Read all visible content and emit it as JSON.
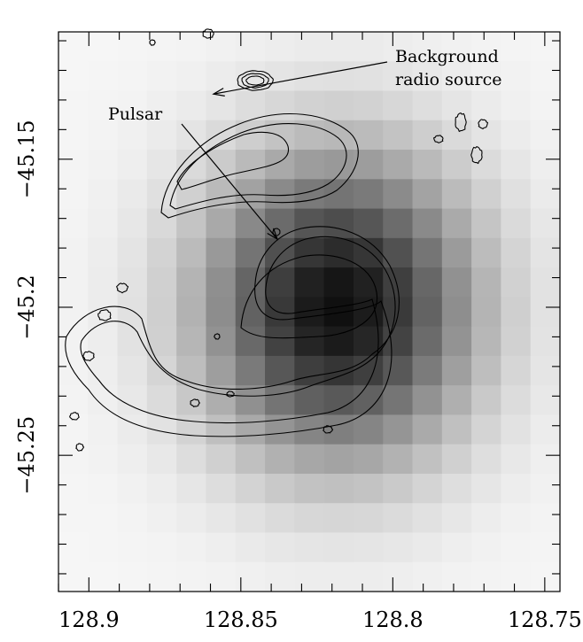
{
  "chart_data": {
    "type": "heatmap",
    "title": "",
    "xlabel": "",
    "ylabel": "",
    "x_reversed": true,
    "xlim": [
      128.91,
      128.745
    ],
    "ylim": [
      -45.296,
      -45.107
    ],
    "x_ticks": [
      {
        "value": 128.9,
        "label": "128.9"
      },
      {
        "value": 128.85,
        "label": "128.85"
      },
      {
        "value": 128.8,
        "label": "128.8"
      },
      {
        "value": 128.75,
        "label": "128.75"
      }
    ],
    "y_ticks": [
      {
        "value": -45.15,
        "label": "−45.15"
      },
      {
        "value": -45.2,
        "label": "−45.2"
      },
      {
        "value": -45.25,
        "label": "−45.25"
      }
    ],
    "grayscale": {
      "description_peak": {
        "x": 128.818,
        "y": -45.2
      },
      "grid": {
        "nx": 17,
        "ny": 19
      }
    },
    "annotations": [
      {
        "label_lines": [
          "Background",
          "radio source"
        ],
        "target": {
          "x": 128.859,
          "y": -45.128
        }
      },
      {
        "label_lines": [
          "Pulsar"
        ],
        "target": {
          "x": 128.838,
          "y": -45.177
        }
      }
    ],
    "colors": {
      "contour": "#000000",
      "background": "#ffffff"
    }
  }
}
